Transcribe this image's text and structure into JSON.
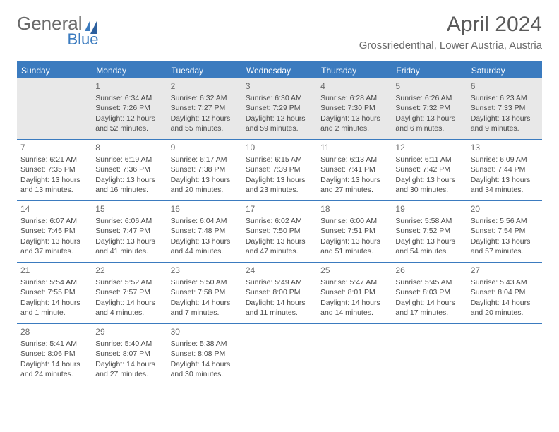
{
  "logo": {
    "word1": "General",
    "word2": "Blue",
    "color1": "#6a6a6a",
    "color2": "#3b7bbf"
  },
  "title": "April 2024",
  "location": "Grossriedenthal, Lower Austria, Austria",
  "daysOfWeek": [
    "Sunday",
    "Monday",
    "Tuesday",
    "Wednesday",
    "Thursday",
    "Friday",
    "Saturday"
  ],
  "colors": {
    "headerBg": "#3b7bbf",
    "headerText": "#ffffff",
    "firstWeekBg": "#e8e8e8",
    "borderColor": "#3b7bbf",
    "bodyText": "#4a4a4a",
    "dayNumColor": "#6a6a6a"
  },
  "fonts": {
    "monthTitleSize": 30,
    "locationSize": 15,
    "dowSize": 12,
    "dayNumSize": 12,
    "cellSize": 10.5
  },
  "weeks": [
    [
      {
        "day": "",
        "sunrise": "",
        "sunset": "",
        "daylight": ""
      },
      {
        "day": "1",
        "sunrise": "6:34 AM",
        "sunset": "7:26 PM",
        "daylight": "12 hours and 52 minutes."
      },
      {
        "day": "2",
        "sunrise": "6:32 AM",
        "sunset": "7:27 PM",
        "daylight": "12 hours and 55 minutes."
      },
      {
        "day": "3",
        "sunrise": "6:30 AM",
        "sunset": "7:29 PM",
        "daylight": "12 hours and 59 minutes."
      },
      {
        "day": "4",
        "sunrise": "6:28 AM",
        "sunset": "7:30 PM",
        "daylight": "13 hours and 2 minutes."
      },
      {
        "day": "5",
        "sunrise": "6:26 AM",
        "sunset": "7:32 PM",
        "daylight": "13 hours and 6 minutes."
      },
      {
        "day": "6",
        "sunrise": "6:23 AM",
        "sunset": "7:33 PM",
        "daylight": "13 hours and 9 minutes."
      }
    ],
    [
      {
        "day": "7",
        "sunrise": "6:21 AM",
        "sunset": "7:35 PM",
        "daylight": "13 hours and 13 minutes."
      },
      {
        "day": "8",
        "sunrise": "6:19 AM",
        "sunset": "7:36 PM",
        "daylight": "13 hours and 16 minutes."
      },
      {
        "day": "9",
        "sunrise": "6:17 AM",
        "sunset": "7:38 PM",
        "daylight": "13 hours and 20 minutes."
      },
      {
        "day": "10",
        "sunrise": "6:15 AM",
        "sunset": "7:39 PM",
        "daylight": "13 hours and 23 minutes."
      },
      {
        "day": "11",
        "sunrise": "6:13 AM",
        "sunset": "7:41 PM",
        "daylight": "13 hours and 27 minutes."
      },
      {
        "day": "12",
        "sunrise": "6:11 AM",
        "sunset": "7:42 PM",
        "daylight": "13 hours and 30 minutes."
      },
      {
        "day": "13",
        "sunrise": "6:09 AM",
        "sunset": "7:44 PM",
        "daylight": "13 hours and 34 minutes."
      }
    ],
    [
      {
        "day": "14",
        "sunrise": "6:07 AM",
        "sunset": "7:45 PM",
        "daylight": "13 hours and 37 minutes."
      },
      {
        "day": "15",
        "sunrise": "6:06 AM",
        "sunset": "7:47 PM",
        "daylight": "13 hours and 41 minutes."
      },
      {
        "day": "16",
        "sunrise": "6:04 AM",
        "sunset": "7:48 PM",
        "daylight": "13 hours and 44 minutes."
      },
      {
        "day": "17",
        "sunrise": "6:02 AM",
        "sunset": "7:50 PM",
        "daylight": "13 hours and 47 minutes."
      },
      {
        "day": "18",
        "sunrise": "6:00 AM",
        "sunset": "7:51 PM",
        "daylight": "13 hours and 51 minutes."
      },
      {
        "day": "19",
        "sunrise": "5:58 AM",
        "sunset": "7:52 PM",
        "daylight": "13 hours and 54 minutes."
      },
      {
        "day": "20",
        "sunrise": "5:56 AM",
        "sunset": "7:54 PM",
        "daylight": "13 hours and 57 minutes."
      }
    ],
    [
      {
        "day": "21",
        "sunrise": "5:54 AM",
        "sunset": "7:55 PM",
        "daylight": "14 hours and 1 minute."
      },
      {
        "day": "22",
        "sunrise": "5:52 AM",
        "sunset": "7:57 PM",
        "daylight": "14 hours and 4 minutes."
      },
      {
        "day": "23",
        "sunrise": "5:50 AM",
        "sunset": "7:58 PM",
        "daylight": "14 hours and 7 minutes."
      },
      {
        "day": "24",
        "sunrise": "5:49 AM",
        "sunset": "8:00 PM",
        "daylight": "14 hours and 11 minutes."
      },
      {
        "day": "25",
        "sunrise": "5:47 AM",
        "sunset": "8:01 PM",
        "daylight": "14 hours and 14 minutes."
      },
      {
        "day": "26",
        "sunrise": "5:45 AM",
        "sunset": "8:03 PM",
        "daylight": "14 hours and 17 minutes."
      },
      {
        "day": "27",
        "sunrise": "5:43 AM",
        "sunset": "8:04 PM",
        "daylight": "14 hours and 20 minutes."
      }
    ],
    [
      {
        "day": "28",
        "sunrise": "5:41 AM",
        "sunset": "8:06 PM",
        "daylight": "14 hours and 24 minutes."
      },
      {
        "day": "29",
        "sunrise": "5:40 AM",
        "sunset": "8:07 PM",
        "daylight": "14 hours and 27 minutes."
      },
      {
        "day": "30",
        "sunrise": "5:38 AM",
        "sunset": "8:08 PM",
        "daylight": "14 hours and 30 minutes."
      },
      {
        "day": "",
        "sunrise": "",
        "sunset": "",
        "daylight": ""
      },
      {
        "day": "",
        "sunrise": "",
        "sunset": "",
        "daylight": ""
      },
      {
        "day": "",
        "sunrise": "",
        "sunset": "",
        "daylight": ""
      },
      {
        "day": "",
        "sunrise": "",
        "sunset": "",
        "daylight": ""
      }
    ]
  ]
}
